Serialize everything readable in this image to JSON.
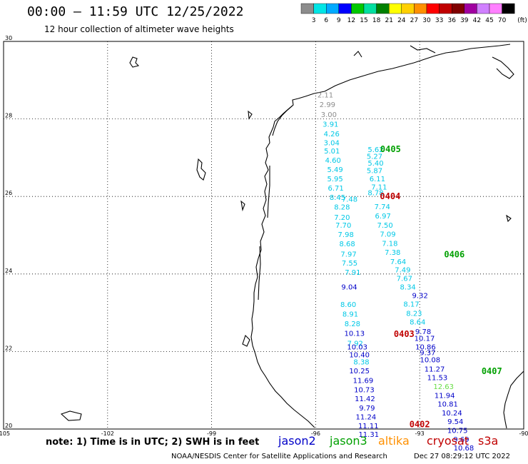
{
  "header": {
    "title": "00:00 – 11:59 UTC 12/25/2022",
    "subtitle": "12 hour collection of altimeter wave heights"
  },
  "color_scale": {
    "labels": [
      "3",
      "6",
      "9",
      "12",
      "15",
      "18",
      "21",
      "24",
      "27",
      "30",
      "33",
      "36",
      "39",
      "42",
      "45",
      "70"
    ],
    "unit": "(ft)",
    "colors": [
      "#8c8c8c",
      "#00e5e5",
      "#00aaff",
      "#0000ff",
      "#00c800",
      "#00e0a0",
      "#008000",
      "#ffff00",
      "#ffd000",
      "#ff9000",
      "#ff0000",
      "#c00000",
      "#800000",
      "#a000a0",
      "#d080ff",
      "#ff80ff",
      "#000000"
    ]
  },
  "axes": {
    "lon_ticks": [
      "-105",
      "-102",
      "-99",
      "-96",
      "-93",
      "-90"
    ],
    "lat_ticks": [
      "30",
      "28",
      "26",
      "24",
      "22",
      "20"
    ],
    "lon_range": [
      -105,
      -90
    ],
    "lat_range": [
      20,
      30
    ],
    "grid": true
  },
  "satellites": {
    "jason2": {
      "label": "jason2",
      "color": "#0000c8"
    },
    "jason3": {
      "label": "jason3",
      "color": "#00a000"
    },
    "altika": {
      "label": "altika",
      "color": "#ff9000"
    },
    "cryosat": {
      "label": "cryosat",
      "color": "#c00000"
    },
    "s3a": {
      "label": "s3a",
      "color": "#c00000"
    }
  },
  "track_labels": [
    {
      "text": "0405",
      "lon": -93.84,
      "lat": 27.15,
      "sat": "jason3"
    },
    {
      "text": "0404",
      "lon": -93.85,
      "lat": 25.93,
      "sat": "cryosat"
    },
    {
      "text": "0406",
      "lon": -92.0,
      "lat": 24.43,
      "sat": "jason3"
    },
    {
      "text": "0403",
      "lon": -93.45,
      "lat": 22.38,
      "sat": "cryosat"
    },
    {
      "text": "0407",
      "lon": -90.92,
      "lat": 21.42,
      "sat": "jason3"
    },
    {
      "text": "0402",
      "lon": -93.0,
      "lat": 20.05,
      "sat": "cryosat"
    }
  ],
  "chart_data": {
    "type": "scatter",
    "xlabel": "",
    "ylabel": "",
    "series": [
      {
        "color": "#8c8c8c",
        "points": [
          {
            "lon": -95.72,
            "lat": 28.55,
            "v": "2.11"
          },
          {
            "lon": -95.66,
            "lat": 28.31,
            "v": "2.99"
          },
          {
            "lon": -95.62,
            "lat": 28.05,
            "v": "3.00"
          }
        ]
      },
      {
        "color": "#00c8e6",
        "points": [
          {
            "lon": -95.57,
            "lat": 27.8,
            "v": "3.91"
          },
          {
            "lon": -95.54,
            "lat": 27.55,
            "v": "4.26"
          },
          {
            "lon": -95.54,
            "lat": 27.32,
            "v": "3.04"
          },
          {
            "lon": -95.53,
            "lat": 27.11,
            "v": "5.01"
          },
          {
            "lon": -95.5,
            "lat": 26.87,
            "v": "4.60"
          },
          {
            "lon": -95.44,
            "lat": 26.63,
            "v": "5.49"
          },
          {
            "lon": -95.44,
            "lat": 26.39,
            "v": "5.95"
          },
          {
            "lon": -95.42,
            "lat": 26.15,
            "v": "6.71"
          },
          {
            "lon": -95.37,
            "lat": 25.91,
            "v": "8.45"
          },
          {
            "lon": -95.24,
            "lat": 25.66,
            "v": "8.28"
          },
          {
            "lon": -95.24,
            "lat": 25.4,
            "v": "7.20"
          },
          {
            "lon": -95.2,
            "lat": 25.19,
            "v": "7.70"
          },
          {
            "lon": -95.13,
            "lat": 24.95,
            "v": "7.98"
          },
          {
            "lon": -95.09,
            "lat": 24.71,
            "v": "8.68"
          },
          {
            "lon": -95.05,
            "lat": 24.45,
            "v": "7.97"
          },
          {
            "lon": -95.02,
            "lat": 24.22,
            "v": "7.55"
          },
          {
            "lon": -94.93,
            "lat": 23.98,
            "v": "7.91"
          },
          {
            "lon": -94.27,
            "lat": 26.8,
            "v": "5.40"
          },
          {
            "lon": -94.27,
            "lat": 27.15,
            "v": "5.62"
          },
          {
            "lon": -94.3,
            "lat": 26.97,
            "v": "5.27"
          },
          {
            "lon": -94.3,
            "lat": 26.6,
            "v": "5.87"
          },
          {
            "lon": -94.22,
            "lat": 26.39,
            "v": "6.11"
          },
          {
            "lon": -94.17,
            "lat": 26.18,
            "v": "7.11"
          },
          {
            "lon": -94.27,
            "lat": 26.03,
            "v": "8.78"
          },
          {
            "lon": -95.02,
            "lat": 25.87,
            "v": "7.48"
          },
          {
            "lon": -94.08,
            "lat": 25.67,
            "v": "7.74"
          },
          {
            "lon": -94.06,
            "lat": 25.43,
            "v": "6.97"
          },
          {
            "lon": -94.0,
            "lat": 25.19,
            "v": "7.50"
          },
          {
            "lon": -93.92,
            "lat": 24.96,
            "v": "7.09"
          },
          {
            "lon": -93.86,
            "lat": 24.72,
            "v": "7.18"
          },
          {
            "lon": -93.78,
            "lat": 24.49,
            "v": "7.38"
          },
          {
            "lon": -93.62,
            "lat": 24.25,
            "v": "7.64"
          },
          {
            "lon": -93.49,
            "lat": 24.04,
            "v": "7.49"
          },
          {
            "lon": -93.44,
            "lat": 23.82,
            "v": "7.67"
          },
          {
            "lon": -93.34,
            "lat": 23.6,
            "v": "8.34"
          },
          {
            "lon": -95.06,
            "lat": 23.15,
            "v": "8.60"
          },
          {
            "lon": -95.0,
            "lat": 22.9,
            "v": "8.91"
          },
          {
            "lon": -94.94,
            "lat": 22.65,
            "v": "8.28"
          },
          {
            "lon": -94.86,
            "lat": 22.15,
            "v": "7.92"
          },
          {
            "lon": -93.24,
            "lat": 23.16,
            "v": "8.17"
          },
          {
            "lon": -93.16,
            "lat": 22.92,
            "v": "8.23"
          },
          {
            "lon": -93.06,
            "lat": 22.7,
            "v": "8.64"
          },
          {
            "lon": -94.68,
            "lat": 21.67,
            "v": "8.38"
          }
        ]
      },
      {
        "color": "#0000c8",
        "points": [
          {
            "lon": -95.03,
            "lat": 23.6,
            "v": "9.04"
          },
          {
            "lon": -92.99,
            "lat": 23.38,
            "v": "9.32"
          },
          {
            "lon": -94.88,
            "lat": 22.4,
            "v": "10.13"
          },
          {
            "lon": -94.8,
            "lat": 22.05,
            "v": "10.03"
          },
          {
            "lon": -94.74,
            "lat": 21.85,
            "v": "10.40"
          },
          {
            "lon": -94.74,
            "lat": 21.44,
            "v": "10.25"
          },
          {
            "lon": -94.63,
            "lat": 21.19,
            "v": "11.69"
          },
          {
            "lon": -94.6,
            "lat": 20.95,
            "v": "10.73"
          },
          {
            "lon": -94.58,
            "lat": 20.72,
            "v": "11.42"
          },
          {
            "lon": -94.52,
            "lat": 20.48,
            "v": "9.79"
          },
          {
            "lon": -94.55,
            "lat": 20.25,
            "v": "11.24"
          },
          {
            "lon": -94.48,
            "lat": 20.02,
            "v": "11.11"
          },
          {
            "lon": -94.47,
            "lat": 19.8,
            "v": "11.31"
          },
          {
            "lon": -92.9,
            "lat": 22.45,
            "v": "9.78"
          },
          {
            "lon": -92.86,
            "lat": 22.27,
            "v": "10.17"
          },
          {
            "lon": -92.83,
            "lat": 22.05,
            "v": "10.86"
          },
          {
            "lon": -92.77,
            "lat": 21.91,
            "v": "9.37"
          },
          {
            "lon": -92.7,
            "lat": 21.72,
            "v": "10.08"
          },
          {
            "lon": -92.57,
            "lat": 21.48,
            "v": "11.27"
          },
          {
            "lon": -92.49,
            "lat": 21.26,
            "v": "11.53"
          },
          {
            "lon": -92.28,
            "lat": 20.8,
            "v": "11.94"
          },
          {
            "lon": -92.19,
            "lat": 20.58,
            "v": "10.81"
          },
          {
            "lon": -92.07,
            "lat": 20.35,
            "v": "10.24"
          },
          {
            "lon": -91.97,
            "lat": 20.13,
            "v": "9.54"
          },
          {
            "lon": -91.91,
            "lat": 19.9,
            "v": "10.75"
          },
          {
            "lon": -91.8,
            "lat": 19.67,
            "v": "9.69"
          },
          {
            "lon": -91.73,
            "lat": 19.45,
            "v": "10.68"
          }
        ]
      },
      {
        "color": "#66dd44",
        "points": [
          {
            "lon": -92.31,
            "lat": 21.03,
            "v": "12.63"
          }
        ]
      }
    ]
  },
  "footer": {
    "note": "note: 1) Time is in UTC; 2) SWH is in feet",
    "credit": "NOAA/NESDIS Center for Satellite Applications and Research",
    "timestamp": "Dec 27 08:29:12 UTC 2022"
  }
}
